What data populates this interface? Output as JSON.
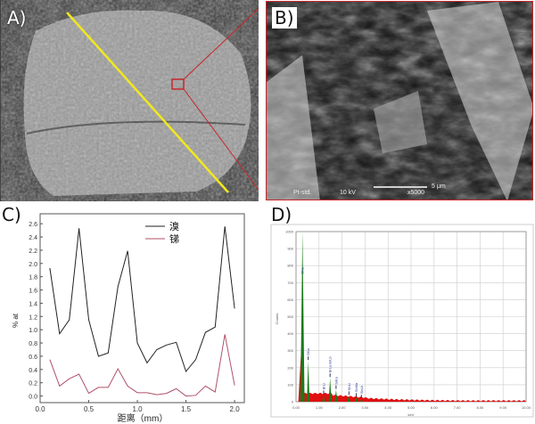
{
  "panels": {
    "a": {
      "label": "A)"
    },
    "b": {
      "label": "B)",
      "info": {
        "detector": "Pt-std.",
        "voltage": "10 kV",
        "magnification": "x5000",
        "scale": "5 μm"
      }
    },
    "c": {
      "label": "C)"
    },
    "d": {
      "label": "D)"
    }
  },
  "colors": {
    "scan_line": "#f2e81e",
    "zoom_box": "#c8262b",
    "series_br": "#222222",
    "series_sb": "#b0506a",
    "eds_bg": "#e01010",
    "eds_peaks": "#1a7a1a"
  },
  "chart_data": [
    {
      "type": "line",
      "xlabel": "距离（mm）",
      "ylabel": "% at",
      "xlim": [
        0,
        2.1
      ],
      "ylim": [
        -0.1,
        2.75
      ],
      "xticks": [
        "0.0",
        "0.5",
        "1.0",
        "1.5",
        "2.0"
      ],
      "yticks": [
        "0.0",
        "0.2",
        "0.4",
        "0.6",
        "0.8",
        "1.0",
        "1.2",
        "1.4",
        "1.6",
        "1.8",
        "2.0",
        "2.2",
        "2.4",
        "2.6"
      ],
      "legend_position": "top-right",
      "x": [
        0.1,
        0.2,
        0.3,
        0.4,
        0.5,
        0.6,
        0.7,
        0.8,
        0.9,
        1.0,
        1.1,
        1.2,
        1.3,
        1.4,
        1.5,
        1.6,
        1.7,
        1.8,
        1.9,
        2.0
      ],
      "series": [
        {
          "name": "溴",
          "values": [
            1.93,
            0.94,
            1.15,
            2.53,
            1.15,
            0.6,
            0.65,
            1.65,
            2.19,
            0.8,
            0.5,
            0.7,
            0.77,
            0.81,
            0.37,
            0.55,
            0.96,
            1.04,
            2.56,
            1.32
          ]
        },
        {
          "name": "锑",
          "values": [
            0.55,
            0.15,
            0.26,
            0.33,
            0.04,
            0.13,
            0.13,
            0.41,
            0.15,
            0.05,
            0.05,
            0.02,
            0.04,
            0.11,
            0.0,
            0.01,
            0.15,
            0.06,
            0.93,
            0.16
          ]
        }
      ],
      "grid": false
    },
    {
      "type": "area",
      "xlabel": "keV",
      "ylabel": "Counts",
      "xlim": [
        0,
        10
      ],
      "ylim": [
        0,
        1000
      ],
      "xticks": [
        "0.00",
        "1.00",
        "2.00",
        "3.00",
        "4.00",
        "5.00",
        "6.00",
        "7.00",
        "8.00",
        "9.00",
        "10.00"
      ],
      "yticks": [
        "0",
        "100",
        "200",
        "300",
        "400",
        "500",
        "600",
        "700",
        "800",
        "900",
        "1000"
      ],
      "grid": true,
      "peaks": [
        {
          "x": 0.28,
          "y": 1000,
          "label": "CKa"
        },
        {
          "x": 0.53,
          "y": 240,
          "label": "OKa"
        },
        {
          "x": 1.2,
          "y": 40,
          "label": "BrLl"
        },
        {
          "x": 1.48,
          "y": 140,
          "label": "BrLa BrLb"
        },
        {
          "x": 1.74,
          "y": 70,
          "label": "SiKa"
        },
        {
          "x": 2.3,
          "y": 35,
          "label": "SbLl"
        },
        {
          "x": 2.62,
          "y": 25,
          "label": "SbMa"
        },
        {
          "x": 2.84,
          "y": 15,
          "label": "SbLb"
        }
      ]
    }
  ]
}
